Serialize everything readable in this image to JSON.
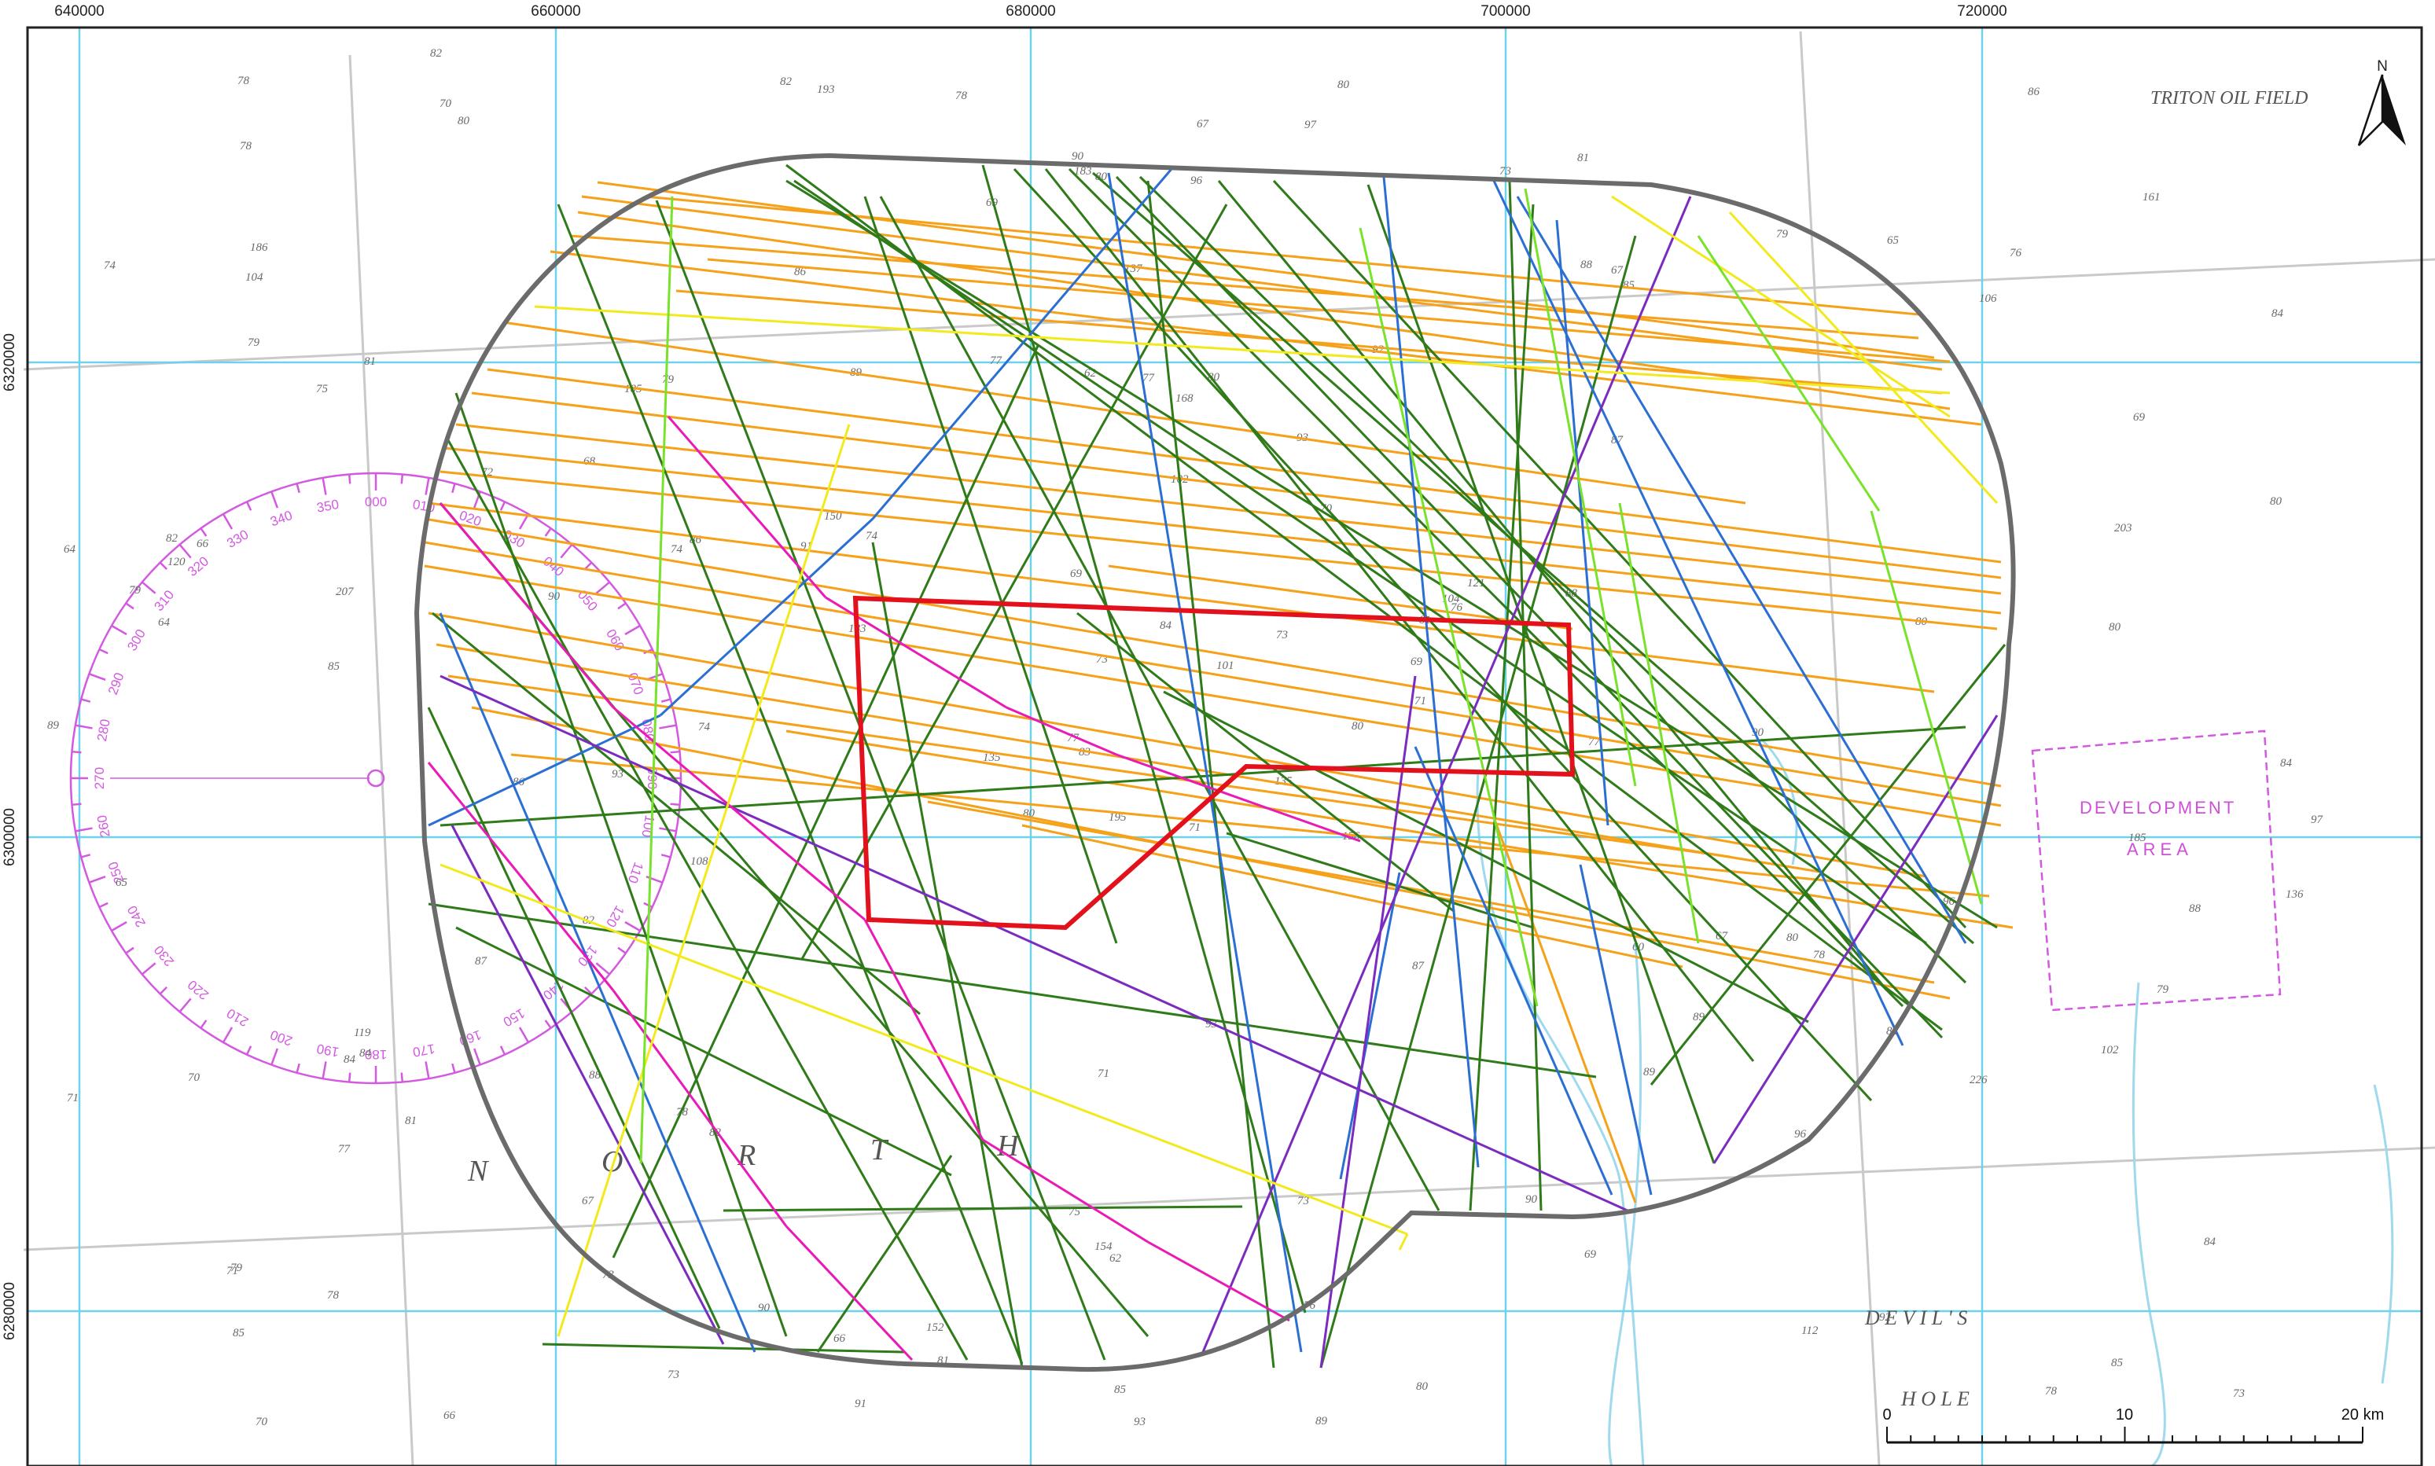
{
  "map": {
    "grid": {
      "eastings": [
        "640000",
        "660000",
        "680000",
        "700000",
        "720000"
      ],
      "northings": [
        "6320000",
        "6300000",
        "6280000"
      ]
    },
    "place_names": {
      "triton": "TRITON OIL FIELD",
      "development": "DEVELOPMENT",
      "area": "AREA",
      "north_letters": [
        "N",
        "O",
        "R",
        "T",
        "H"
      ],
      "devils_hole_1": "D E V I L ' S",
      "devils_hole_2": "H O L E"
    },
    "north_arrow": {
      "label": "N"
    },
    "scale_bar": {
      "ticks": [
        "0",
        "10",
        "20 km"
      ]
    },
    "compass_rose": {
      "bearings": [
        "000",
        "010",
        "020",
        "030",
        "040",
        "050",
        "060",
        "070",
        "080",
        "090",
        "100",
        "110",
        "120",
        "130",
        "140",
        "150",
        "160",
        "170",
        "180",
        "190",
        "200",
        "210",
        "220",
        "230",
        "240",
        "250",
        "260",
        "270",
        "280",
        "290",
        "300",
        "310",
        "320",
        "330",
        "340",
        "350"
      ]
    },
    "depth_soundings": [
      "71",
      "75",
      "83",
      "79",
      "81",
      "82",
      "81",
      "80",
      "67",
      "80",
      "80",
      "73",
      "85",
      "84",
      "80",
      "87",
      "66",
      "62",
      "70",
      "81",
      "74",
      "85",
      "73",
      "77",
      "76",
      "78",
      "81",
      "80",
      "64",
      "60",
      "80",
      "77",
      "75",
      "73",
      "79",
      "79",
      "78",
      "78",
      "84",
      "80",
      "80",
      "91",
      "90",
      "89",
      "73",
      "64",
      "69",
      "70",
      "62",
      "71",
      "77",
      "69",
      "74",
      "89",
      "69",
      "67",
      "70",
      "78",
      "73",
      "76",
      "67",
      "74",
      "66",
      "68",
      "65",
      "82",
      "73",
      "69",
      "84",
      "71",
      "71",
      "66",
      "67",
      "74",
      "71",
      "78",
      "72",
      "65",
      "69",
      "76",
      "73",
      "78",
      "77",
      "79",
      "85",
      "80",
      "93",
      "92",
      "89",
      "90",
      "90",
      "97",
      "88",
      "96",
      "101",
      "102",
      "120",
      "93",
      "88",
      "85",
      "86",
      "82",
      "84",
      "79",
      "87",
      "88",
      "90",
      "104",
      "106",
      "183",
      "185",
      "104",
      "168",
      "135",
      "193",
      "70",
      "195",
      "161",
      "77",
      "78",
      "84",
      "86",
      "93",
      "89",
      "90",
      "82",
      "85",
      "81",
      "80",
      "79",
      "84",
      "80",
      "86",
      "86",
      "88",
      "84",
      "108",
      "119",
      "136",
      "150",
      "156",
      "207",
      "226",
      "135",
      "121",
      "186",
      "152",
      "112",
      "154",
      "183",
      "203",
      "105",
      "82",
      "91",
      "96",
      "97",
      "137",
      "102",
      "93",
      "92",
      "87",
      "96",
      "89"
    ],
    "colors": {
      "boundary": "#6b6b6b",
      "red_polygon": "#e3111b",
      "orange": "#f5a11a",
      "dark_green": "#2f7a19",
      "blue": "#2c6fd3",
      "purple": "#7b2bbd",
      "magenta": "#ea1ab7",
      "yellow": "#f2ea1c",
      "light_green": "#79e22b",
      "grid": "#6ed3ea",
      "chart_pink": "#d35ae0"
    }
  }
}
